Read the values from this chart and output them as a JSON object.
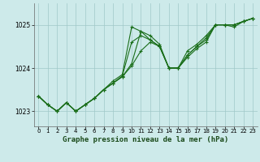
{
  "title": "Graphe pression niveau de la mer (hPa)",
  "background_color": "#cdeaea",
  "grid_color": "#a0c8c8",
  "line_color": "#1a6e1a",
  "xlim": [
    -0.5,
    23.5
  ],
  "ylim": [
    1022.65,
    1025.5
  ],
  "yticks": [
    1023,
    1024,
    1025
  ],
  "xticks": [
    0,
    1,
    2,
    3,
    4,
    5,
    6,
    7,
    8,
    9,
    10,
    11,
    12,
    13,
    14,
    15,
    16,
    17,
    18,
    19,
    20,
    21,
    22,
    23
  ],
  "series": [
    [
      1023.35,
      1023.15,
      1023.0,
      1023.2,
      1023.0,
      1023.15,
      1023.3,
      1023.5,
      1023.7,
      1023.85,
      1024.95,
      1024.85,
      1024.75,
      1024.55,
      1024.0,
      1024.0,
      1024.4,
      1024.55,
      1024.75,
      1025.0,
      1025.0,
      1025.0,
      1025.08,
      1025.15
    ],
    [
      1023.35,
      1023.15,
      1023.0,
      1023.2,
      1023.0,
      1023.15,
      1023.3,
      1023.5,
      1023.65,
      1023.8,
      1024.1,
      1024.85,
      1024.65,
      1024.5,
      1024.0,
      1024.0,
      1024.3,
      1024.5,
      1024.65,
      1025.0,
      1025.0,
      1025.0,
      1025.08,
      1025.15
    ],
    [
      1023.35,
      1023.15,
      1023.0,
      1023.2,
      1023.0,
      1023.15,
      1023.3,
      1023.5,
      1023.65,
      1023.8,
      1024.05,
      1024.4,
      1024.6,
      1024.5,
      1024.0,
      1024.0,
      1024.25,
      1024.45,
      1024.6,
      1025.0,
      1025.0,
      1024.95,
      1025.08,
      1025.15
    ],
    [
      1023.35,
      1023.15,
      1023.0,
      1023.2,
      1023.0,
      1023.15,
      1023.3,
      1023.5,
      1023.65,
      1023.82,
      1024.6,
      1024.75,
      1024.65,
      1024.5,
      1024.0,
      1024.0,
      1024.3,
      1024.5,
      1024.7,
      1025.0,
      1025.0,
      1025.0,
      1025.08,
      1025.15
    ]
  ],
  "marker": "+",
  "markersize": 3.5,
  "linewidth": 0.8
}
